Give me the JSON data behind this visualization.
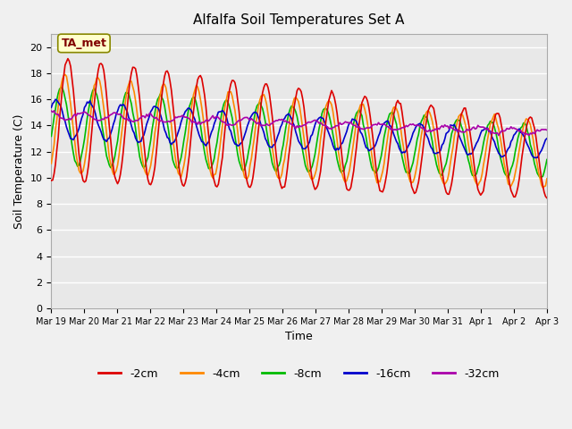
{
  "title": "Alfalfa Soil Temperatures Set A",
  "xlabel": "Time",
  "ylabel": "Soil Temperature (C)",
  "ylim": [
    0,
    21
  ],
  "yticks": [
    0,
    2,
    4,
    6,
    8,
    10,
    12,
    14,
    16,
    18,
    20
  ],
  "annotation_text": "TA_met",
  "annotation_box_color": "#ffffcc",
  "annotation_text_color": "#800000",
  "plot_bg_color": "#e8e8e8",
  "fig_bg_color": "#f0f0f0",
  "series_colors": {
    "-2cm": "#dd0000",
    "-4cm": "#ff8800",
    "-8cm": "#00bb00",
    "-16cm": "#0000cc",
    "-32cm": "#aa00aa"
  },
  "series_labels": [
    "-2cm",
    "-4cm",
    "-8cm",
    "-16cm",
    "-32cm"
  ],
  "start_day": 0,
  "end_day": 15,
  "n_points": 360,
  "x_tick_labels": [
    "Mar 19",
    "Mar 20",
    "Mar 21",
    "Mar 22",
    "Mar 23",
    "Mar 24",
    "Mar 25",
    "Mar 26",
    "Mar 27",
    "Mar 28",
    "Mar 29",
    "Mar 30",
    "Mar 31",
    "Apr 1",
    "Apr 2",
    "Apr 3"
  ],
  "x_tick_positions": [
    0,
    1,
    2,
    3,
    4,
    5,
    6,
    7,
    8,
    9,
    10,
    11,
    12,
    13,
    14,
    15
  ]
}
